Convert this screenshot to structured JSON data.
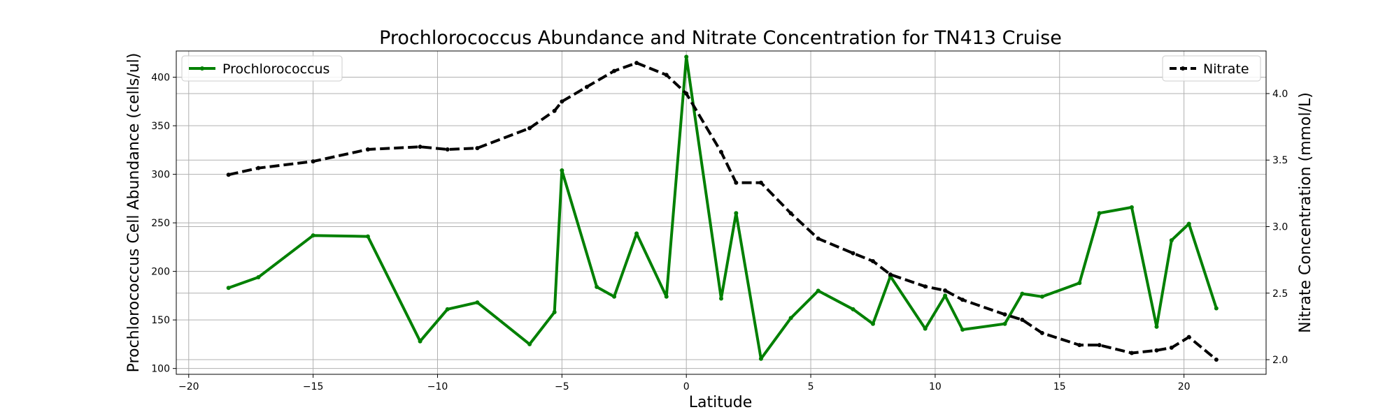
{
  "chart_data": {
    "type": "line",
    "title": "Prochlorococcus Abundance and Nitrate Concentration for TN413 Cruise",
    "xlabel": "Latitude",
    "ylabel_left": "Prochlorococcus Cell Abundance (cells/ul)",
    "ylabel_right": "Nitrate Concentration (mmol/L)",
    "xlim": [
      -20.5,
      23.3
    ],
    "ylim_left": [
      94,
      427
    ],
    "ylim_right": [
      1.89,
      4.32
    ],
    "x_ticks": [
      -20,
      -15,
      -10,
      -5,
      0,
      5,
      10,
      15,
      20
    ],
    "y_ticks_left": [
      100,
      150,
      200,
      250,
      300,
      350,
      400
    ],
    "y_ticks_right": [
      2.0,
      2.5,
      3.0,
      3.5,
      4.0
    ],
    "grid": true,
    "series": [
      {
        "name": "Prochlorococcus",
        "axis": "left",
        "color": "#008000",
        "style": "solid",
        "x": [
          -18.4,
          -17.2,
          -15.0,
          -12.8,
          -10.7,
          -9.6,
          -8.4,
          -6.3,
          -5.3,
          -5.0,
          -3.6,
          -2.9,
          -2.0,
          -0.8,
          0.0,
          1.4,
          2.0,
          3.0,
          4.2,
          5.3,
          6.7,
          7.5,
          8.2,
          9.6,
          10.4,
          11.1,
          12.8,
          13.5,
          14.3,
          15.8,
          16.6,
          17.9,
          18.9,
          19.5,
          20.2,
          21.3
        ],
        "y": [
          183,
          194,
          237,
          236,
          128,
          161,
          168,
          125,
          158,
          304,
          184,
          174,
          239,
          174,
          421,
          172,
          260,
          110,
          152,
          180,
          161,
          146,
          195,
          141,
          175,
          140,
          146,
          177,
          174,
          188,
          260,
          266,
          143,
          232,
          249,
          162
        ]
      },
      {
        "name": "Nitrate",
        "axis": "right",
        "color": "#000000",
        "style": "dashed",
        "x": [
          -18.4,
          -17.2,
          -15.0,
          -12.8,
          -10.7,
          -9.6,
          -8.4,
          -6.3,
          -5.3,
          -5.0,
          -4.0,
          -2.9,
          -2.0,
          -0.8,
          0.0,
          1.4,
          2.0,
          3.0,
          4.2,
          5.3,
          6.7,
          7.5,
          8.2,
          9.6,
          10.4,
          11.1,
          12.8,
          13.5,
          14.3,
          15.8,
          16.6,
          17.9,
          18.9,
          19.5,
          20.2,
          21.3
        ],
        "y": [
          3.39,
          3.44,
          3.49,
          3.58,
          3.6,
          3.58,
          3.59,
          3.74,
          3.87,
          3.94,
          4.05,
          4.17,
          4.23,
          4.14,
          4.0,
          3.56,
          3.33,
          3.33,
          3.1,
          2.91,
          2.8,
          2.74,
          2.64,
          2.55,
          2.52,
          2.45,
          2.34,
          2.3,
          2.2,
          2.11,
          2.11,
          2.05,
          2.07,
          2.09,
          2.17,
          2.0
        ]
      }
    ],
    "legend": [
      {
        "label": "Prochlorococcus",
        "placement": "top-left"
      },
      {
        "label": "Nitrate",
        "placement": "top-right"
      }
    ]
  }
}
